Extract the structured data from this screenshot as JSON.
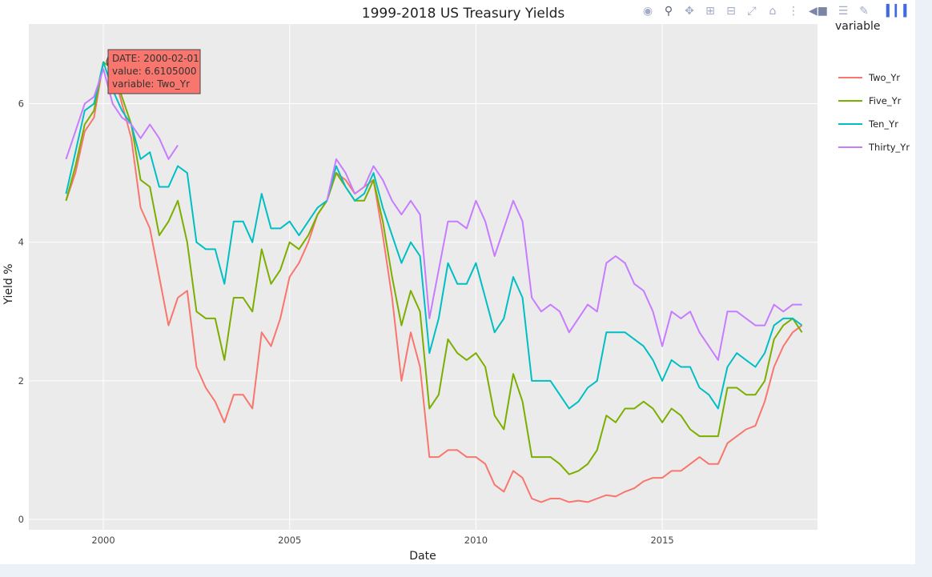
{
  "toolbar": {
    "icons": [
      "camera-icon",
      "zoom-icon",
      "pan-icon",
      "zoom-in-icon",
      "zoom-out-icon",
      "autoscale-icon",
      "home-icon",
      "spike-lines-icon",
      "hover-closest-icon",
      "hover-compare-icon",
      "edit-icon",
      "plotly-logo-icon"
    ]
  },
  "tooltip": {
    "line1": "DATE: 2000-02-01",
    "line2": "value: 6.6105000",
    "line3": "variable: Two_Yr",
    "date": "2000-02-01",
    "value": 6.6105,
    "color": "#F8766D"
  },
  "chart_data": {
    "type": "line",
    "title": "1999-2018 US Treasury Yields",
    "xlabel": "Date",
    "ylabel": "Yield %",
    "xlim": [
      "1998-01",
      "2019-03"
    ],
    "ylim": [
      -0.15,
      7.15
    ],
    "xticks": [
      "2000",
      "2005",
      "2010",
      "2015"
    ],
    "yticks": [
      "0",
      "2",
      "4",
      "6"
    ],
    "grid": true,
    "legend_title": "variable",
    "legend_position": "right",
    "x": [
      "1999-01",
      "1999-04",
      "1999-07",
      "1999-10",
      "2000-01",
      "2000-04",
      "2000-07",
      "2000-10",
      "2001-01",
      "2001-04",
      "2001-07",
      "2001-10",
      "2002-01",
      "2002-04",
      "2002-07",
      "2002-10",
      "2003-01",
      "2003-04",
      "2003-07",
      "2003-10",
      "2004-01",
      "2004-04",
      "2004-07",
      "2004-10",
      "2005-01",
      "2005-04",
      "2005-07",
      "2005-10",
      "2006-01",
      "2006-04",
      "2006-07",
      "2006-10",
      "2007-01",
      "2007-04",
      "2007-07",
      "2007-10",
      "2008-01",
      "2008-04",
      "2008-07",
      "2008-10",
      "2009-01",
      "2009-04",
      "2009-07",
      "2009-10",
      "2010-01",
      "2010-04",
      "2010-07",
      "2010-10",
      "2011-01",
      "2011-04",
      "2011-07",
      "2011-10",
      "2012-01",
      "2012-04",
      "2012-07",
      "2012-10",
      "2013-01",
      "2013-04",
      "2013-07",
      "2013-10",
      "2014-01",
      "2014-04",
      "2014-07",
      "2014-10",
      "2015-01",
      "2015-04",
      "2015-07",
      "2015-10",
      "2016-01",
      "2016-04",
      "2016-07",
      "2016-10",
      "2017-01",
      "2017-04",
      "2017-07",
      "2017-10",
      "2018-01",
      "2018-04",
      "2018-07",
      "2018-10"
    ],
    "series": [
      {
        "name": "Two_Yr",
        "color": "#F8766D",
        "values": [
          4.6,
          5.0,
          5.6,
          5.8,
          6.6,
          6.5,
          6.0,
          5.5,
          4.5,
          4.2,
          3.5,
          2.8,
          3.2,
          3.3,
          2.2,
          1.9,
          1.7,
          1.4,
          1.8,
          1.8,
          1.6,
          2.7,
          2.5,
          2.9,
          3.5,
          3.7,
          4.0,
          4.4,
          4.6,
          5.0,
          4.9,
          4.7,
          4.8,
          4.9,
          4.1,
          3.2,
          2.0,
          2.7,
          2.2,
          0.9,
          0.9,
          1.0,
          1.0,
          0.9,
          0.9,
          0.8,
          0.5,
          0.4,
          0.7,
          0.6,
          0.3,
          0.25,
          0.3,
          0.3,
          0.25,
          0.27,
          0.25,
          0.3,
          0.35,
          0.33,
          0.4,
          0.45,
          0.55,
          0.6,
          0.6,
          0.7,
          0.7,
          0.8,
          0.9,
          0.8,
          0.8,
          1.1,
          1.2,
          1.3,
          1.35,
          1.7,
          2.2,
          2.5,
          2.7,
          2.8
        ]
      },
      {
        "name": "Five_Yr",
        "color": "#7CAE00",
        "values": [
          4.6,
          5.1,
          5.7,
          5.9,
          6.6,
          6.5,
          6.1,
          5.7,
          4.9,
          4.8,
          4.1,
          4.3,
          4.6,
          4.0,
          3.0,
          2.9,
          2.9,
          2.3,
          3.2,
          3.2,
          3.0,
          3.9,
          3.4,
          3.6,
          4.0,
          3.9,
          4.1,
          4.4,
          4.6,
          5.0,
          4.8,
          4.6,
          4.6,
          4.9,
          4.3,
          3.5,
          2.8,
          3.3,
          3.0,
          1.6,
          1.8,
          2.6,
          2.4,
          2.3,
          2.4,
          2.2,
          1.5,
          1.3,
          2.1,
          1.7,
          0.9,
          0.9,
          0.9,
          0.8,
          0.65,
          0.7,
          0.8,
          1.0,
          1.5,
          1.4,
          1.6,
          1.6,
          1.7,
          1.6,
          1.4,
          1.6,
          1.5,
          1.3,
          1.2,
          1.2,
          1.2,
          1.9,
          1.9,
          1.8,
          1.8,
          2.0,
          2.6,
          2.8,
          2.9,
          2.7
        ]
      },
      {
        "name": "Ten_Yr",
        "color": "#00BFC4",
        "values": [
          4.7,
          5.3,
          5.9,
          6.0,
          6.6,
          6.2,
          5.9,
          5.7,
          5.2,
          5.3,
          4.8,
          4.8,
          5.1,
          5.0,
          4.0,
          3.9,
          3.9,
          3.4,
          4.3,
          4.3,
          4.0,
          4.7,
          4.2,
          4.2,
          4.3,
          4.1,
          4.3,
          4.5,
          4.6,
          5.1,
          4.8,
          4.6,
          4.7,
          5.0,
          4.5,
          4.1,
          3.7,
          4.0,
          3.8,
          2.4,
          2.9,
          3.7,
          3.4,
          3.4,
          3.7,
          3.2,
          2.7,
          2.9,
          3.5,
          3.2,
          2.0,
          2.0,
          2.0,
          1.8,
          1.6,
          1.7,
          1.9,
          2.0,
          2.7,
          2.7,
          2.7,
          2.6,
          2.5,
          2.3,
          2.0,
          2.3,
          2.2,
          2.2,
          1.9,
          1.8,
          1.6,
          2.2,
          2.4,
          2.3,
          2.2,
          2.4,
          2.8,
          2.9,
          2.9,
          2.8
        ]
      },
      {
        "name": "Thirty_Yr",
        "color": "#C77CFF",
        "values": [
          5.2,
          5.6,
          6.0,
          6.1,
          6.5,
          6.0,
          5.8,
          5.7,
          5.5,
          5.7,
          5.5,
          5.2,
          5.4,
          null,
          null,
          null,
          null,
          null,
          null,
          null,
          null,
          null,
          null,
          null,
          null,
          null,
          null,
          null,
          4.6,
          5.2,
          5.0,
          4.7,
          4.8,
          5.1,
          4.9,
          4.6,
          4.4,
          4.6,
          4.4,
          2.9,
          3.6,
          4.3,
          4.3,
          4.2,
          4.6,
          4.3,
          3.8,
          4.2,
          4.6,
          4.3,
          3.2,
          3.0,
          3.1,
          3.0,
          2.7,
          2.9,
          3.1,
          3.0,
          3.7,
          3.8,
          3.7,
          3.4,
          3.3,
          3.0,
          2.5,
          3.0,
          2.9,
          3.0,
          2.7,
          2.5,
          2.3,
          3.0,
          3.0,
          2.9,
          2.8,
          2.8,
          3.1,
          3.0,
          3.1,
          3.1
        ]
      }
    ]
  }
}
